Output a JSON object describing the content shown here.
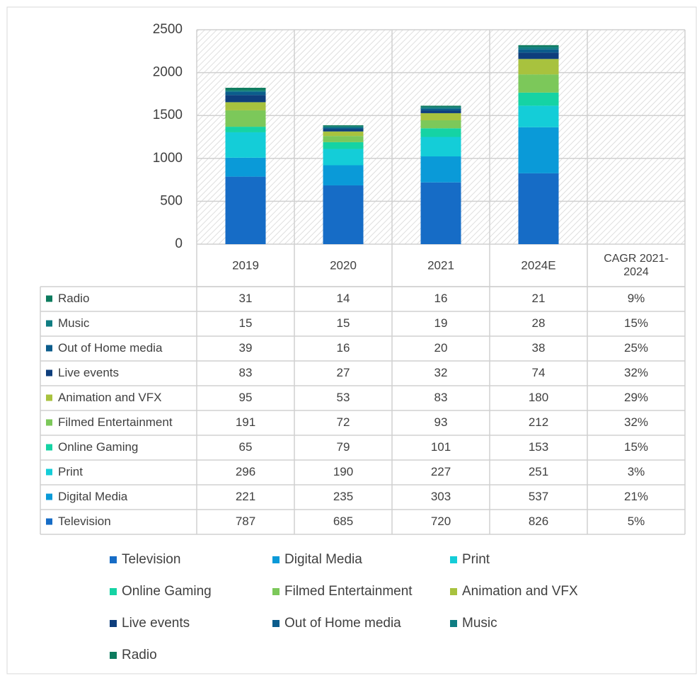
{
  "chart_data": {
    "type": "stacked_bar",
    "categories": [
      "2019",
      "2020",
      "2021",
      "2024E"
    ],
    "extra_column": "CAGR 2021-2024",
    "ylim": [
      0,
      2500
    ],
    "yticks": [
      0,
      500,
      1000,
      1500,
      2000,
      2500
    ],
    "grid": true,
    "series": [
      {
        "name": "Television",
        "color": "#166cc6",
        "values": [
          787,
          685,
          720,
          826
        ],
        "cagr": "5%"
      },
      {
        "name": "Digital Media",
        "color": "#0a9ad8",
        "values": [
          221,
          235,
          303,
          537
        ],
        "cagr": "21%"
      },
      {
        "name": "Print",
        "color": "#14cdd8",
        "values": [
          296,
          190,
          227,
          251
        ],
        "cagr": "3%"
      },
      {
        "name": "Online Gaming",
        "color": "#15d3a4",
        "values": [
          65,
          79,
          101,
          153
        ],
        "cagr": "15%"
      },
      {
        "name": "Filmed Entertainment",
        "color": "#7cc85a",
        "values": [
          191,
          72,
          93,
          212
        ],
        "cagr": "32%"
      },
      {
        "name": "Animation and VFX",
        "color": "#a8c23e",
        "values": [
          95,
          53,
          83,
          180
        ],
        "cagr": "29%"
      },
      {
        "name": "Live events",
        "color": "#0e3e7c",
        "values": [
          83,
          27,
          32,
          74
        ],
        "cagr": "32%"
      },
      {
        "name": "Out of Home media",
        "color": "#0b5c8c",
        "values": [
          39,
          16,
          20,
          38
        ],
        "cagr": "25%"
      },
      {
        "name": "Music",
        "color": "#0f7d82",
        "values": [
          15,
          15,
          19,
          28
        ],
        "cagr": "15%"
      },
      {
        "name": "Radio",
        "color": "#0c7b5e",
        "values": [
          31,
          14,
          16,
          21
        ],
        "cagr": "9%"
      }
    ]
  }
}
